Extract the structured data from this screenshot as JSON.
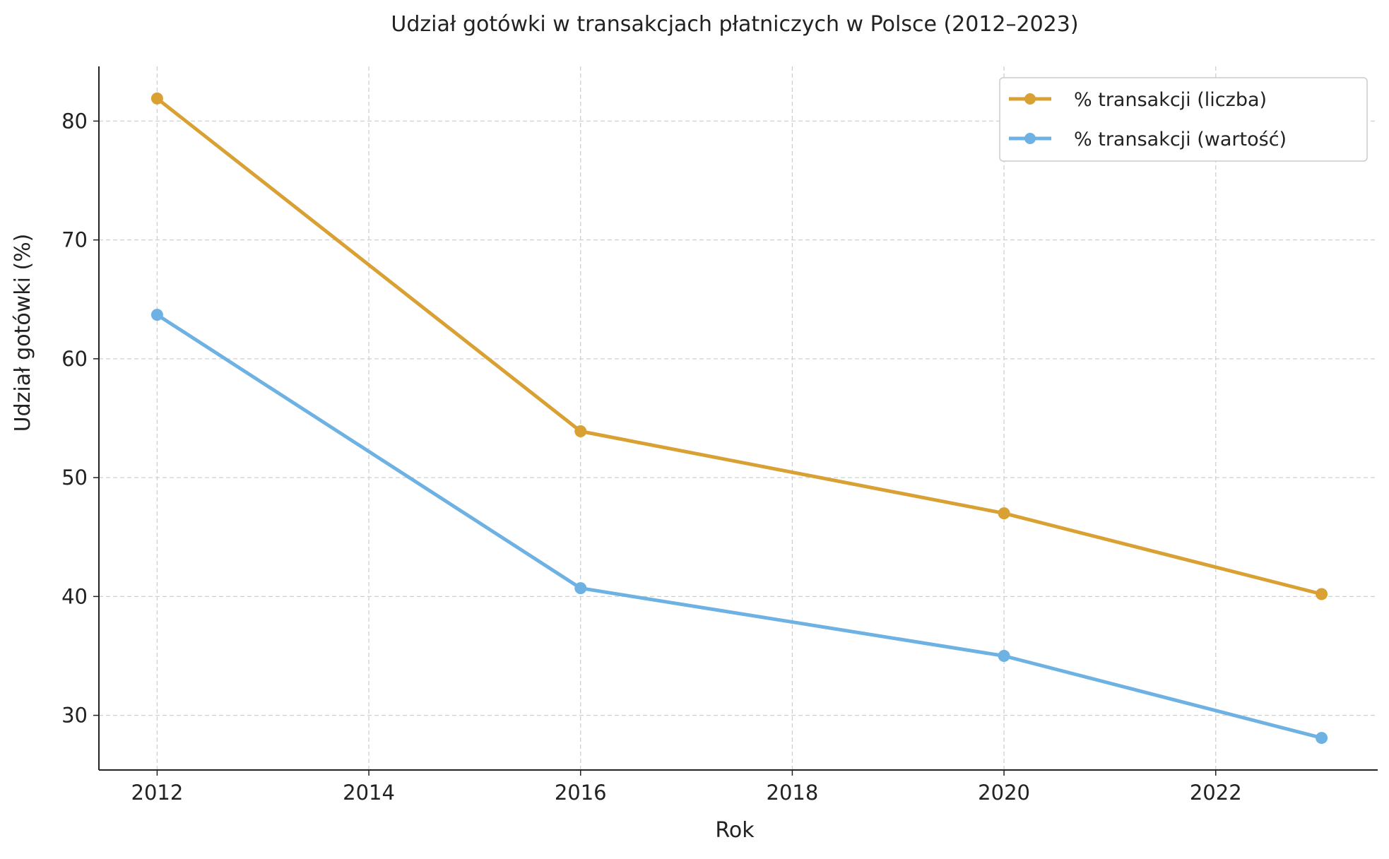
{
  "chart_data": {
    "type": "line",
    "title": "Udział gotówki w transakcjach płatniczych w Polsce (2012–2023)",
    "xlabel": "Rok",
    "ylabel": "Udział gotówki (%)",
    "x": [
      2012,
      2016,
      2020,
      2023
    ],
    "xlim": [
      2011.45,
      2023.53
    ],
    "ylim": [
      25.4,
      84.6
    ],
    "xticks": [
      2012,
      2014,
      2016,
      2018,
      2020,
      2022
    ],
    "yticks": [
      30,
      40,
      50,
      60,
      70,
      80
    ],
    "grid": true,
    "legend_position": "top-right",
    "series": [
      {
        "name": "% transakcji (liczba)",
        "color": "#D9A033",
        "values": [
          81.9,
          53.9,
          47.0,
          40.2
        ]
      },
      {
        "name": "% transakcji (wartość)",
        "color": "#6EB1E3",
        "values": [
          63.7,
          40.7,
          35.0,
          28.1
        ]
      }
    ]
  }
}
